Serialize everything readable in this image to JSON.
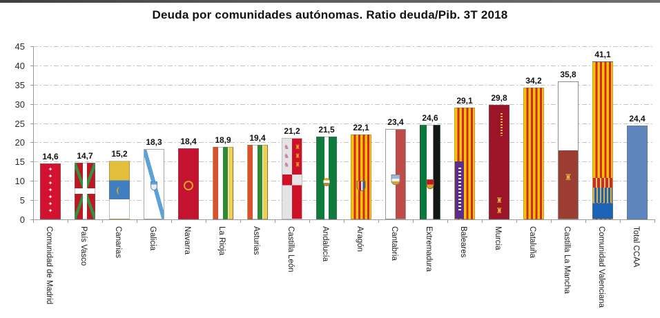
{
  "chart_data": {
    "type": "bar",
    "title": "Deuda por comunidades autónomas. Ratio deuda/Pib. 3T 2018",
    "xlabel": "",
    "ylabel": "",
    "ylim": [
      0,
      45
    ],
    "yticks": [
      0,
      5,
      10,
      15,
      20,
      25,
      30,
      35,
      40,
      45
    ],
    "grid": "horizontal dash-dot gridlines, on",
    "legend": "none",
    "bar_fill_style": "each bar filled with the flag of its autonomous community; Total CCAA is plain blue",
    "categories": [
      "Comunidad de Madrid",
      "País Vasco",
      "Canarias",
      "Galicia",
      "Navarra",
      "La Rioja",
      "Asturias",
      "Castilla León",
      "Andalucía",
      "Aragón",
      "Cantabria",
      "Extremadura",
      "Baleares",
      "Murcia",
      "Cataluña",
      "Castilla La Mancha",
      "Comunidad Valenciana",
      "Total CCAA"
    ],
    "values": [
      14.6,
      14.7,
      15.2,
      18.3,
      18.4,
      18.9,
      19.4,
      21.2,
      21.5,
      22.1,
      23.4,
      24.6,
      29.1,
      29.8,
      34.2,
      35.8,
      41.1,
      24.4
    ],
    "value_labels": [
      "14,6",
      "14,7",
      "15,2",
      "18,3",
      "18,4",
      "18,9",
      "19,4",
      "21,2",
      "21,5",
      "22,1",
      "23,4",
      "24,6",
      "29,1",
      "29,8",
      "34,2",
      "35,8",
      "41,1",
      "24,4"
    ],
    "flag_icons": [
      "madrid-flag",
      "paisvasco-flag",
      "canarias-flag",
      "galicia-flag",
      "navarra-flag",
      "larioja-flag",
      "asturias-flag",
      "castillaleon-flag",
      "andalucia-flag",
      "aragon-flag",
      "cantabria-flag",
      "extremadura-flag",
      "baleares-flag",
      "murcia-flag",
      "cataluna-flag",
      "castillalamancha-flag",
      "valencia-flag",
      "total-bar"
    ],
    "colors": {
      "total_bar": "#5E86BC",
      "gridline": "#C3C3C3",
      "axis": "#9A9A9A",
      "title_text": "#111111",
      "value_label_text": "#111111",
      "senyera_yellow": "#FFC400",
      "senyera_red": "#D1272E"
    }
  }
}
